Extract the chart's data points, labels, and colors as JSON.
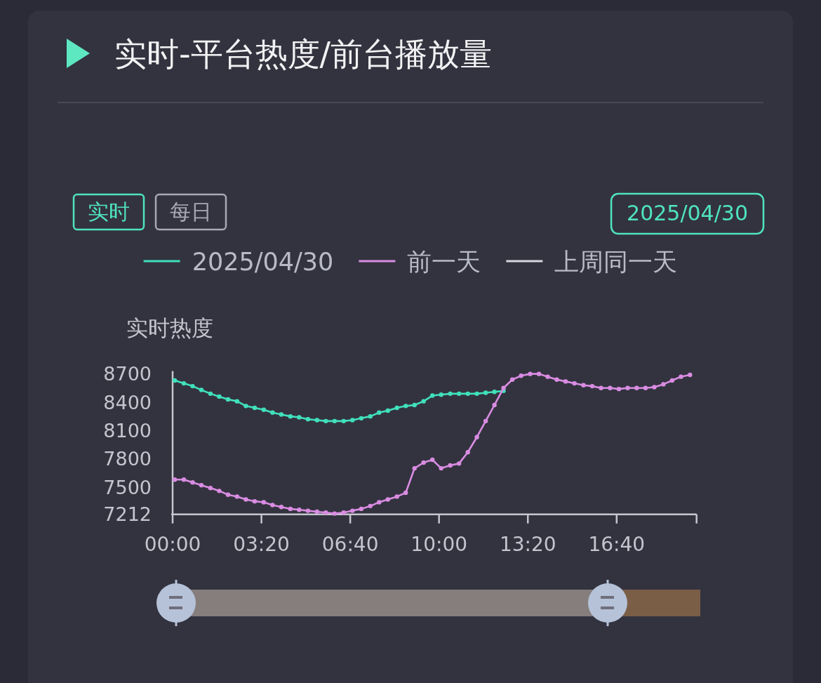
{
  "chart_data": {
    "type": "line",
    "title": "实时-平台热度/前台播放量",
    "ylabel": "实时热度",
    "annotations": [
      "实时",
      "每日",
      "2025/04/30"
    ],
    "x": [
      0.08,
      0.42,
      0.75,
      1.08,
      1.42,
      1.75,
      2.08,
      2.42,
      2.75,
      3.08,
      3.42,
      3.75,
      4.08,
      4.42,
      4.75,
      5.08,
      5.42,
      5.75,
      6.08,
      6.42,
      6.75,
      7.08,
      7.42,
      7.75,
      8.08,
      8.42,
      8.75,
      9.08,
      9.42,
      9.75,
      10.08,
      10.42,
      10.75,
      11.08,
      11.42,
      11.75,
      12.08,
      12.42,
      12.75,
      13.08,
      13.42,
      13.75,
      14.08,
      14.42,
      14.75,
      15.08,
      15.42,
      15.75,
      16.08,
      16.42,
      16.75,
      17.08,
      17.42,
      17.75,
      18.08,
      18.42,
      18.75,
      19.08,
      19.42
    ],
    "series": [
      {
        "name": "2025/04/30",
        "color": "#40e0bc",
        "values": [
          8630,
          8600,
          8570,
          8530,
          8490,
          8460,
          8430,
          8410,
          8360,
          8340,
          8320,
          8290,
          8270,
          8250,
          8240,
          8220,
          8210,
          8200,
          8200,
          8200,
          8210,
          8230,
          8250,
          8290,
          8310,
          8340,
          8360,
          8370,
          8410,
          8470,
          8480,
          8490,
          8490,
          8490,
          8490,
          8500,
          8510,
          8520,
          null,
          null,
          null,
          null,
          null,
          null,
          null,
          null,
          null,
          null,
          null,
          null,
          null,
          null,
          null,
          null,
          null,
          null,
          null,
          null,
          null
        ]
      },
      {
        "name": "前一天",
        "color": "#d98ce2",
        "values": [
          7580,
          7580,
          7550,
          7520,
          7490,
          7460,
          7420,
          7400,
          7370,
          7350,
          7340,
          7310,
          7290,
          7270,
          7260,
          7250,
          7240,
          7230,
          7220,
          7230,
          7250,
          7270,
          7300,
          7340,
          7370,
          7400,
          7440,
          7700,
          7760,
          7790,
          7700,
          7730,
          7750,
          7870,
          8030,
          8200,
          8370,
          8550,
          8640,
          8680,
          8700,
          8700,
          8670,
          8640,
          8620,
          8600,
          8580,
          8570,
          8550,
          8550,
          8540,
          8550,
          8550,
          8550,
          8560,
          8590,
          8630,
          8670,
          8690
        ]
      },
      {
        "name": "上周同一天",
        "color": "#d6d6de",
        "values": [
          null,
          null,
          null,
          null,
          null,
          null,
          null,
          null,
          null,
          null,
          null,
          null,
          null,
          null,
          null,
          null,
          null,
          null,
          null,
          null,
          null,
          null,
          null,
          null,
          null,
          null,
          null,
          null,
          null,
          null,
          null,
          null,
          null,
          null,
          null,
          null,
          null,
          null,
          null,
          null,
          null,
          null,
          null,
          null,
          null,
          null,
          null,
          null,
          null,
          null,
          null,
          null,
          null,
          null,
          null,
          null,
          null,
          null,
          null
        ]
      }
    ],
    "xlim": [
      0,
      19.6667
    ],
    "xticks": [
      {
        "value": 0,
        "label": "00:00"
      },
      {
        "value": 3.3333,
        "label": "03:20"
      },
      {
        "value": 6.6667,
        "label": "06:40"
      },
      {
        "value": 10,
        "label": "10:00"
      },
      {
        "value": 13.3333,
        "label": "13:20"
      },
      {
        "value": 16.6667,
        "label": "16:40"
      },
      {
        "value": 19.6667,
        "label": null
      }
    ],
    "ylim": [
      7212,
      8730
    ],
    "yticks": [
      7212,
      7500,
      7800,
      8100,
      8400,
      8700
    ],
    "legend": "top",
    "marker": "circle"
  }
}
